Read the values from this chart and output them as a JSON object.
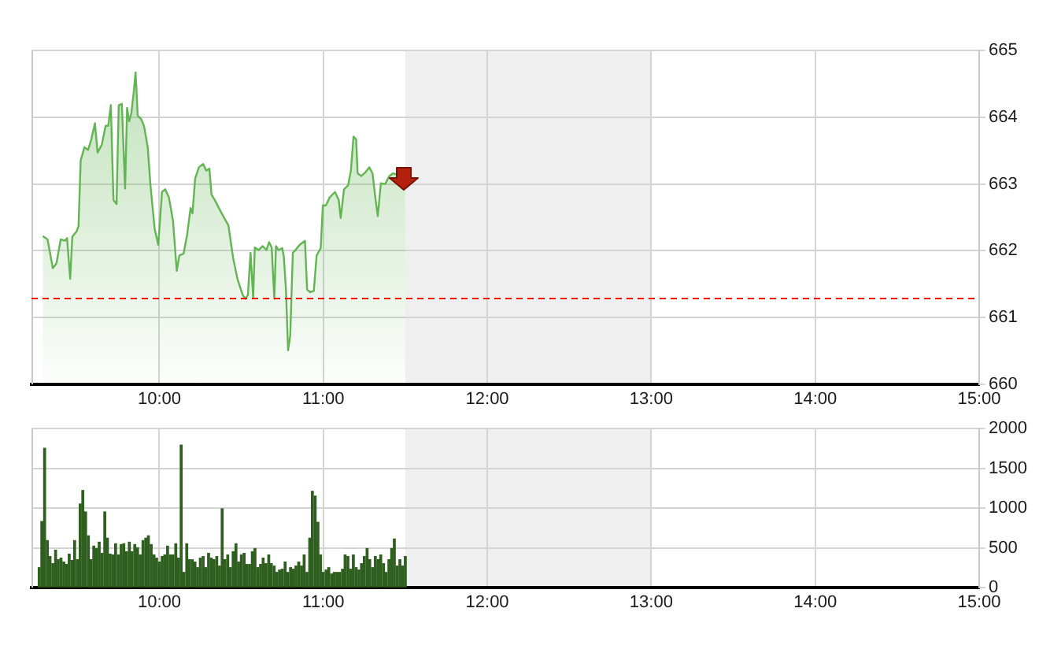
{
  "chart_data": [
    {
      "type": "area",
      "color": "#63b553",
      "marker": "none",
      "x": [
        9.289,
        9.318,
        9.35,
        9.372,
        9.398,
        9.424,
        9.437,
        9.456,
        9.469,
        9.495,
        9.507,
        9.52,
        9.543,
        9.565,
        9.585,
        9.607,
        9.623,
        9.649,
        9.672,
        9.688,
        9.704,
        9.72,
        9.739,
        9.752,
        9.771,
        9.791,
        9.803,
        9.816,
        9.829,
        9.842,
        9.855,
        9.868,
        9.887,
        9.906,
        9.929,
        9.945,
        9.971,
        9.993,
        10.016,
        10.035,
        10.058,
        10.083,
        10.106,
        10.122,
        10.148,
        10.17,
        10.19,
        10.202,
        10.218,
        10.241,
        10.267,
        10.286,
        10.305,
        10.318,
        10.338,
        10.363,
        10.389,
        10.421,
        10.45,
        10.476,
        10.508,
        10.524,
        10.54,
        10.556,
        10.572,
        10.582,
        10.605,
        10.63,
        10.653,
        10.669,
        10.685,
        10.701,
        10.711,
        10.727,
        10.749,
        10.759,
        10.772,
        10.785,
        10.798,
        10.814,
        10.83,
        10.856,
        10.888,
        10.901,
        10.92,
        10.942,
        10.959,
        10.984,
        10.997,
        11.016,
        11.039,
        11.071,
        11.094,
        11.106,
        11.126,
        11.151,
        11.168,
        11.184,
        11.2,
        11.209,
        11.232,
        11.255,
        11.28,
        11.3,
        11.319,
        11.332,
        11.351,
        11.377,
        11.403,
        11.425,
        11.448,
        11.473,
        11.5
      ],
      "values": [
        662.22,
        662.17,
        661.74,
        661.81,
        662.17,
        662.15,
        662.19,
        661.58,
        662.21,
        662.29,
        662.37,
        663.35,
        663.55,
        663.51,
        663.67,
        663.91,
        663.47,
        663.59,
        663.87,
        663.87,
        664.18,
        662.76,
        662.7,
        664.18,
        664.2,
        662.93,
        664.14,
        663.94,
        664.06,
        664.34,
        664.67,
        664.02,
        663.98,
        663.87,
        663.55,
        663.0,
        662.33,
        662.09,
        662.88,
        662.92,
        662.8,
        662.45,
        661.7,
        661.93,
        661.96,
        662.25,
        662.64,
        662.56,
        663.08,
        663.25,
        663.3,
        663.2,
        663.23,
        662.84,
        662.76,
        662.64,
        662.52,
        662.38,
        661.89,
        661.58,
        661.34,
        661.28,
        661.34,
        661.97,
        661.3,
        662.05,
        662.01,
        662.07,
        662.01,
        662.13,
        662.05,
        661.28,
        662.07,
        662.01,
        662.04,
        661.91,
        661.42,
        660.51,
        660.73,
        661.97,
        662.01,
        662.09,
        662.15,
        661.42,
        661.38,
        661.4,
        661.93,
        662.04,
        662.68,
        662.68,
        662.8,
        662.88,
        662.76,
        662.49,
        662.92,
        662.98,
        663.2,
        663.71,
        663.67,
        663.16,
        663.12,
        663.17,
        663.25,
        663.16,
        662.76,
        662.52,
        663.01,
        663.0,
        663.12,
        663.16,
        663.14,
        663.16,
        663.08
      ],
      "xlim": [
        9.22,
        15
      ],
      "xticks": [
        {
          "value": 10,
          "label": "10:00"
        },
        {
          "value": 11,
          "label": "11:00"
        },
        {
          "value": 12,
          "label": "12:00"
        },
        {
          "value": 13,
          "label": "13:00"
        },
        {
          "value": 14,
          "label": "14:00"
        },
        {
          "value": 15,
          "label": "15:00"
        }
      ],
      "ylim": [
        660,
        665
      ],
      "yticks": [
        660,
        661,
        662,
        663,
        664,
        665
      ],
      "grid": true,
      "ref_lines": [
        {
          "axis": "y",
          "value": 661.3,
          "color": "#ff0000",
          "line_style": "dashed"
        }
      ],
      "bands": [
        {
          "axis": "x",
          "from": 11.5,
          "to": 13,
          "color": "#efefef"
        }
      ]
    },
    {
      "type": "bar",
      "color": "#2f5f1f",
      "x": [
        9.267,
        9.283,
        9.3,
        9.317,
        9.333,
        9.35,
        9.367,
        9.383,
        9.4,
        9.417,
        9.433,
        9.45,
        9.467,
        9.483,
        9.5,
        9.517,
        9.533,
        9.55,
        9.567,
        9.583,
        9.6,
        9.617,
        9.633,
        9.65,
        9.667,
        9.683,
        9.7,
        9.717,
        9.733,
        9.75,
        9.767,
        9.783,
        9.8,
        9.817,
        9.833,
        9.85,
        9.867,
        9.883,
        9.9,
        9.917,
        9.933,
        9.95,
        9.967,
        9.983,
        10,
        10.017,
        10.033,
        10.05,
        10.067,
        10.083,
        10.1,
        10.117,
        10.133,
        10.15,
        10.167,
        10.183,
        10.2,
        10.217,
        10.233,
        10.25,
        10.267,
        10.283,
        10.3,
        10.317,
        10.333,
        10.35,
        10.367,
        10.383,
        10.4,
        10.417,
        10.433,
        10.45,
        10.467,
        10.483,
        10.5,
        10.517,
        10.533,
        10.55,
        10.567,
        10.583,
        10.6,
        10.617,
        10.633,
        10.65,
        10.667,
        10.683,
        10.7,
        10.717,
        10.733,
        10.75,
        10.767,
        10.783,
        10.8,
        10.817,
        10.833,
        10.85,
        10.867,
        10.883,
        10.9,
        10.917,
        10.933,
        10.95,
        10.967,
        10.983,
        11,
        11.017,
        11.033,
        11.05,
        11.067,
        11.083,
        11.1,
        11.117,
        11.133,
        11.15,
        11.167,
        11.183,
        11.2,
        11.217,
        11.233,
        11.25,
        11.267,
        11.283,
        11.3,
        11.317,
        11.333,
        11.35,
        11.367,
        11.383,
        11.4,
        11.417,
        11.433,
        11.45,
        11.467,
        11.483,
        11.5
      ],
      "values": [
        250,
        830,
        1750,
        590,
        390,
        300,
        470,
        350,
        370,
        320,
        290,
        420,
        340,
        590,
        350,
        1050,
        1220,
        950,
        650,
        350,
        520,
        490,
        570,
        430,
        950,
        620,
        420,
        410,
        550,
        410,
        540,
        550,
        450,
        570,
        450,
        540,
        500,
        410,
        590,
        620,
        650,
        540,
        410,
        370,
        320,
        390,
        410,
        520,
        410,
        410,
        550,
        370,
        1790,
        190,
        550,
        350,
        350,
        320,
        250,
        370,
        390,
        250,
        430,
        370,
        350,
        390,
        270,
        990,
        350,
        410,
        250,
        450,
        550,
        320,
        410,
        430,
        290,
        290,
        450,
        490,
        250,
        290,
        370,
        300,
        410,
        300,
        270,
        190,
        220,
        230,
        320,
        190,
        250,
        230,
        270,
        320,
        270,
        410,
        190,
        620,
        1210,
        1150,
        820,
        410,
        190,
        220,
        250,
        170,
        190,
        190,
        190,
        230,
        410,
        390,
        230,
        410,
        250,
        220,
        300,
        390,
        490,
        350,
        250,
        390,
        350,
        410,
        300,
        190,
        350,
        490,
        610,
        270,
        350,
        270,
        390
      ],
      "xlim": [
        9.22,
        15
      ],
      "xticks": [
        {
          "value": 10,
          "label": "10:00"
        },
        {
          "value": 11,
          "label": "11:00"
        },
        {
          "value": 12,
          "label": "12:00"
        },
        {
          "value": 13,
          "label": "13:00"
        },
        {
          "value": 14,
          "label": "14:00"
        },
        {
          "value": 15,
          "label": "15:00"
        }
      ],
      "ylim": [
        0,
        2000
      ],
      "yticks": [
        0,
        500,
        1000,
        1500,
        2000
      ],
      "grid": true,
      "bands": [
        {
          "axis": "x",
          "from": 11.5,
          "to": 13,
          "color": "#efefef"
        }
      ]
    }
  ]
}
